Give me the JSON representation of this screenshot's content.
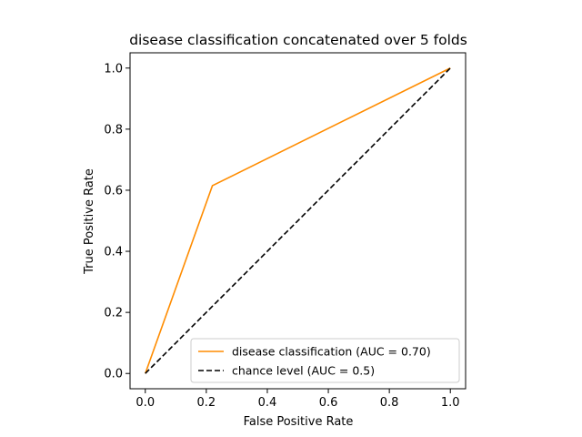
{
  "chart_data": {
    "type": "line",
    "title": "disease classification concatenated over 5 folds",
    "xlabel": "False Positive Rate",
    "ylabel": "True Positive Rate",
    "xlim": [
      -0.05,
      1.05
    ],
    "ylim": [
      -0.05,
      1.05
    ],
    "xticks": [
      "0.0",
      "0.2",
      "0.4",
      "0.6",
      "0.8",
      "1.0"
    ],
    "yticks": [
      "0.0",
      "0.2",
      "0.4",
      "0.6",
      "0.8",
      "1.0"
    ],
    "grid": false,
    "legend_position": "lower-right",
    "series": [
      {
        "name": "disease classification (AUC = 0.70)",
        "color": "#ff8c00",
        "style": "solid",
        "x": [
          0.0,
          0.22,
          1.0
        ],
        "y": [
          0.0,
          0.615,
          1.0
        ]
      },
      {
        "name": "chance level (AUC = 0.5)",
        "color": "#000000",
        "style": "dashed",
        "x": [
          0.0,
          1.0
        ],
        "y": [
          0.0,
          1.0
        ]
      }
    ]
  }
}
